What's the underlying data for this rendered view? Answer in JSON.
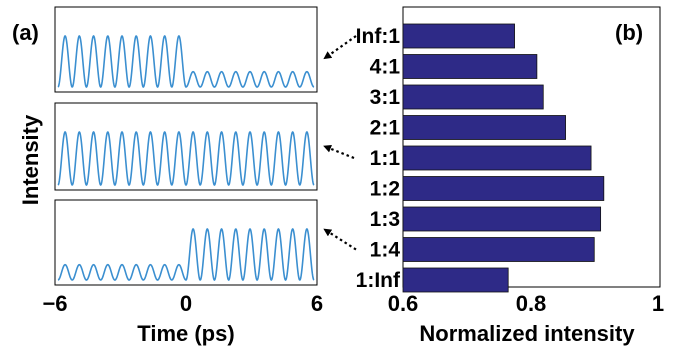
{
  "chart_data": [
    {
      "panel_label": "(a)",
      "type": "line",
      "ylabel": "Intensity",
      "xlabel": "Time (ps)",
      "xlim": [
        -6,
        6
      ],
      "xticks": [
        "−6",
        "0",
        "6"
      ],
      "cycles_per_ps": 1.5,
      "series": [
        {
          "left_amplitude": 1.0,
          "right_amplitude": 0.3
        },
        {
          "left_amplitude": 1.0,
          "right_amplitude": 1.0
        },
        {
          "left_amplitude": 0.3,
          "right_amplitude": 1.0
        }
      ],
      "line_color": "#3b8fd0",
      "grid": false
    },
    {
      "panel_label": "(b)",
      "type": "bar",
      "orientation": "horizontal",
      "categories": [
        "Inf:1",
        "4:1",
        "3:1",
        "2:1",
        "1:1",
        "1:2",
        "1:3",
        "1:4",
        "1:Inf"
      ],
      "values": [
        0.775,
        0.81,
        0.82,
        0.855,
        0.895,
        0.915,
        0.91,
        0.9,
        0.765
      ],
      "xlabel": "Normalized intensity",
      "xlim": [
        0.6,
        1.0
      ],
      "xticks": [
        "0.6",
        "0.8",
        "1"
      ],
      "bar_color": "#2e2a87",
      "grid": false
    }
  ],
  "arrows": [
    {
      "from_category": "Inf:1",
      "to_panel": 0
    },
    {
      "from_category": "1:1",
      "to_panel": 1
    },
    {
      "from_category": "1:4",
      "to_panel": 2
    }
  ]
}
